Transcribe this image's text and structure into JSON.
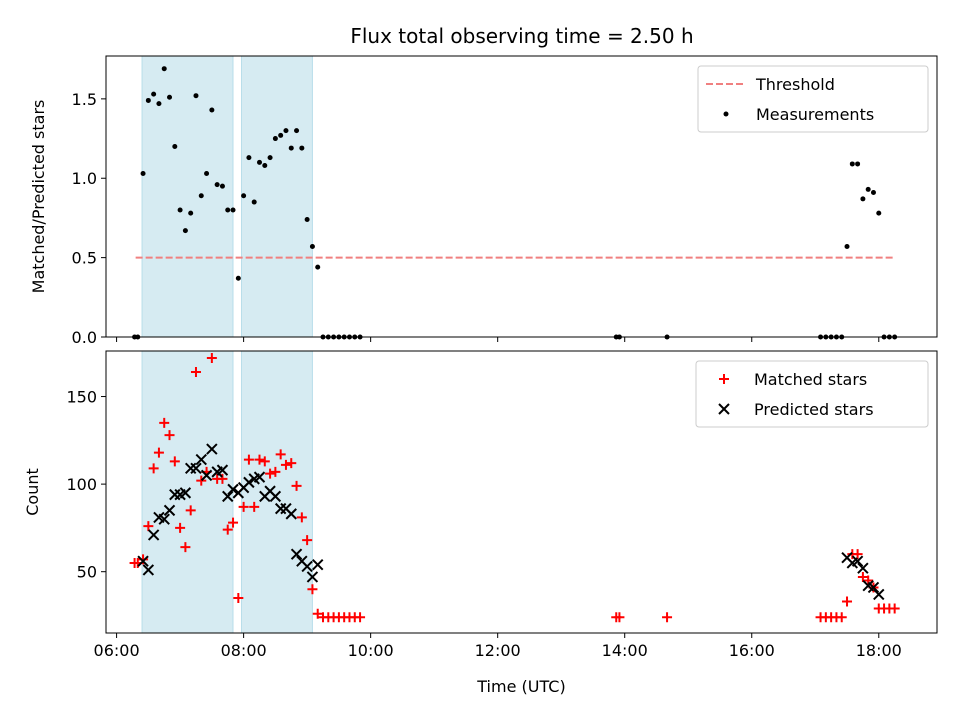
{
  "title": "Flux total observing time = 2.50 h",
  "chart_data": [
    {
      "type": "scatter",
      "ylabel": "Matched/Predicted stars",
      "xlabel": "",
      "ylim": [
        0,
        1.77
      ],
      "xlim": [
        "05:50",
        "18:55"
      ],
      "yticks": [
        0.0,
        0.5,
        1.0,
        1.5
      ],
      "ytick_labels": [
        "0.0",
        "0.5",
        "1.0",
        "1.5"
      ],
      "legend_position": "top-right",
      "shaded_intervals": [
        [
          "06:24",
          "07:50"
        ],
        [
          "07:58",
          "09:05"
        ]
      ],
      "threshold": {
        "name": "Threshold",
        "value": 0.5,
        "x_start": "06:18",
        "x_end": "18:15",
        "color": "#f08080"
      },
      "series": [
        {
          "name": "Measurements",
          "color": "#000000",
          "points": [
            [
              "06:17",
              0
            ],
            [
              "06:20",
              0
            ],
            [
              "06:25",
              1.03
            ],
            [
              "06:30",
              1.49
            ],
            [
              "06:35",
              1.53
            ],
            [
              "06:40",
              1.47
            ],
            [
              "06:45",
              1.69
            ],
            [
              "06:50",
              1.51
            ],
            [
              "06:55",
              1.2
            ],
            [
              "07:00",
              0.8
            ],
            [
              "07:05",
              0.67
            ],
            [
              "07:10",
              0.78
            ],
            [
              "07:15",
              1.52
            ],
            [
              "07:20",
              0.89
            ],
            [
              "07:25",
              1.03
            ],
            [
              "07:30",
              1.43
            ],
            [
              "07:35",
              0.96
            ],
            [
              "07:40",
              0.95
            ],
            [
              "07:45",
              0.8
            ],
            [
              "07:50",
              0.8
            ],
            [
              "07:55",
              0.37
            ],
            [
              "08:00",
              0.89
            ],
            [
              "08:05",
              1.13
            ],
            [
              "08:10",
              0.85
            ],
            [
              "08:15",
              1.1
            ],
            [
              "08:20",
              1.08
            ],
            [
              "08:25",
              1.13
            ],
            [
              "08:30",
              1.25
            ],
            [
              "08:35",
              1.27
            ],
            [
              "08:40",
              1.3
            ],
            [
              "08:45",
              1.19
            ],
            [
              "08:50",
              1.3
            ],
            [
              "08:55",
              1.19
            ],
            [
              "09:00",
              0.74
            ],
            [
              "09:05",
              0.57
            ],
            [
              "09:10",
              0.44
            ],
            [
              "09:15",
              0
            ],
            [
              "09:20",
              0
            ],
            [
              "09:25",
              0
            ],
            [
              "09:30",
              0
            ],
            [
              "09:35",
              0
            ],
            [
              "09:40",
              0
            ],
            [
              "09:45",
              0
            ],
            [
              "09:50",
              0
            ],
            [
              "13:52",
              0
            ],
            [
              "13:55",
              0
            ],
            [
              "14:40",
              0
            ],
            [
              "17:05",
              0
            ],
            [
              "17:10",
              0
            ],
            [
              "17:15",
              0
            ],
            [
              "17:20",
              0
            ],
            [
              "17:25",
              0
            ],
            [
              "17:30",
              0.57
            ],
            [
              "17:35",
              1.09
            ],
            [
              "17:40",
              1.09
            ],
            [
              "17:45",
              0.87
            ],
            [
              "17:50",
              0.93
            ],
            [
              "17:55",
              0.91
            ],
            [
              "18:00",
              0.78
            ],
            [
              "18:05",
              0
            ],
            [
              "18:10",
              0
            ],
            [
              "18:15",
              0
            ]
          ]
        }
      ]
    },
    {
      "type": "scatter",
      "ylabel": "Count",
      "xlabel": "Time (UTC)",
      "ylim": [
        15,
        176
      ],
      "xlim": [
        "05:50",
        "18:55"
      ],
      "yticks": [
        50,
        100,
        150
      ],
      "ytick_labels": [
        "50",
        "100",
        "150"
      ],
      "xticks": [
        "06:00",
        "08:00",
        "10:00",
        "12:00",
        "14:00",
        "16:00",
        "18:00"
      ],
      "xtick_labels": [
        "06:00",
        "08:00",
        "10:00",
        "12:00",
        "14:00",
        "16:00",
        "18:00"
      ],
      "legend_position": "top-right",
      "shaded_intervals": [
        [
          "06:24",
          "07:50"
        ],
        [
          "07:58",
          "09:05"
        ]
      ],
      "series": [
        {
          "name": "Matched stars",
          "marker": "plus",
          "color": "#ff0000",
          "points": [
            [
              "06:17",
              55
            ],
            [
              "06:20",
              55
            ],
            [
              "06:25",
              57
            ],
            [
              "06:30",
              76
            ],
            [
              "06:35",
              109
            ],
            [
              "06:40",
              118
            ],
            [
              "06:45",
              135
            ],
            [
              "06:50",
              128
            ],
            [
              "06:55",
              113
            ],
            [
              "07:00",
              75
            ],
            [
              "07:05",
              64
            ],
            [
              "07:10",
              85
            ],
            [
              "07:15",
              164
            ],
            [
              "07:20",
              102
            ],
            [
              "07:25",
              107
            ],
            [
              "07:30",
              172
            ],
            [
              "07:35",
              103
            ],
            [
              "07:40",
              103
            ],
            [
              "07:45",
              74
            ],
            [
              "07:50",
              78
            ],
            [
              "07:55",
              35
            ],
            [
              "08:00",
              87
            ],
            [
              "08:05",
              114
            ],
            [
              "08:10",
              87
            ],
            [
              "08:15",
              114
            ],
            [
              "08:20",
              113
            ],
            [
              "08:25",
              106
            ],
            [
              "08:30",
              107
            ],
            [
              "08:35",
              117
            ],
            [
              "08:40",
              111
            ],
            [
              "08:45",
              112
            ],
            [
              "08:50",
              99
            ],
            [
              "08:55",
              81
            ],
            [
              "09:00",
              68
            ],
            [
              "09:05",
              40
            ],
            [
              "09:10",
              26
            ],
            [
              "09:15",
              24
            ],
            [
              "09:20",
              24
            ],
            [
              "09:25",
              24
            ],
            [
              "09:30",
              24
            ],
            [
              "09:35",
              24
            ],
            [
              "09:40",
              24
            ],
            [
              "09:45",
              24
            ],
            [
              "09:50",
              24
            ],
            [
              "13:52",
              24
            ],
            [
              "13:55",
              24
            ],
            [
              "14:40",
              24
            ],
            [
              "17:05",
              24
            ],
            [
              "17:10",
              24
            ],
            [
              "17:15",
              24
            ],
            [
              "17:20",
              24
            ],
            [
              "17:25",
              24
            ],
            [
              "17:30",
              33
            ],
            [
              "17:35",
              60
            ],
            [
              "17:40",
              60
            ],
            [
              "17:45",
              47
            ],
            [
              "17:50",
              45
            ],
            [
              "17:55",
              41
            ],
            [
              "18:00",
              29
            ],
            [
              "18:05",
              29
            ],
            [
              "18:10",
              29
            ],
            [
              "18:15",
              29
            ]
          ]
        },
        {
          "name": "Predicted stars",
          "marker": "x",
          "color": "#000000",
          "points": [
            [
              "06:25",
              56
            ],
            [
              "06:30",
              51
            ],
            [
              "06:35",
              71
            ],
            [
              "06:40",
              81
            ],
            [
              "06:45",
              80
            ],
            [
              "06:50",
              85
            ],
            [
              "06:55",
              94
            ],
            [
              "07:00",
              94
            ],
            [
              "07:05",
              95
            ],
            [
              "07:10",
              109
            ],
            [
              "07:15",
              109
            ],
            [
              "07:20",
              114
            ],
            [
              "07:25",
              105
            ],
            [
              "07:30",
              120
            ],
            [
              "07:35",
              107
            ],
            [
              "07:40",
              108
            ],
            [
              "07:45",
              93
            ],
            [
              "07:50",
              97
            ],
            [
              "07:55",
              95
            ],
            [
              "08:00",
              98
            ],
            [
              "08:05",
              101
            ],
            [
              "08:10",
              103
            ],
            [
              "08:15",
              104
            ],
            [
              "08:20",
              93
            ],
            [
              "08:25",
              96
            ],
            [
              "08:30",
              93
            ],
            [
              "08:35",
              86
            ],
            [
              "08:40",
              86
            ],
            [
              "08:45",
              83
            ],
            [
              "08:50",
              60
            ],
            [
              "08:55",
              56
            ],
            [
              "09:00",
              53
            ],
            [
              "09:05",
              47
            ],
            [
              "09:10",
              54
            ],
            [
              "17:30",
              58
            ],
            [
              "17:35",
              55
            ],
            [
              "17:40",
              56
            ],
            [
              "17:45",
              52
            ],
            [
              "17:50",
              42
            ],
            [
              "17:55",
              41
            ],
            [
              "18:00",
              37
            ]
          ]
        }
      ]
    }
  ]
}
